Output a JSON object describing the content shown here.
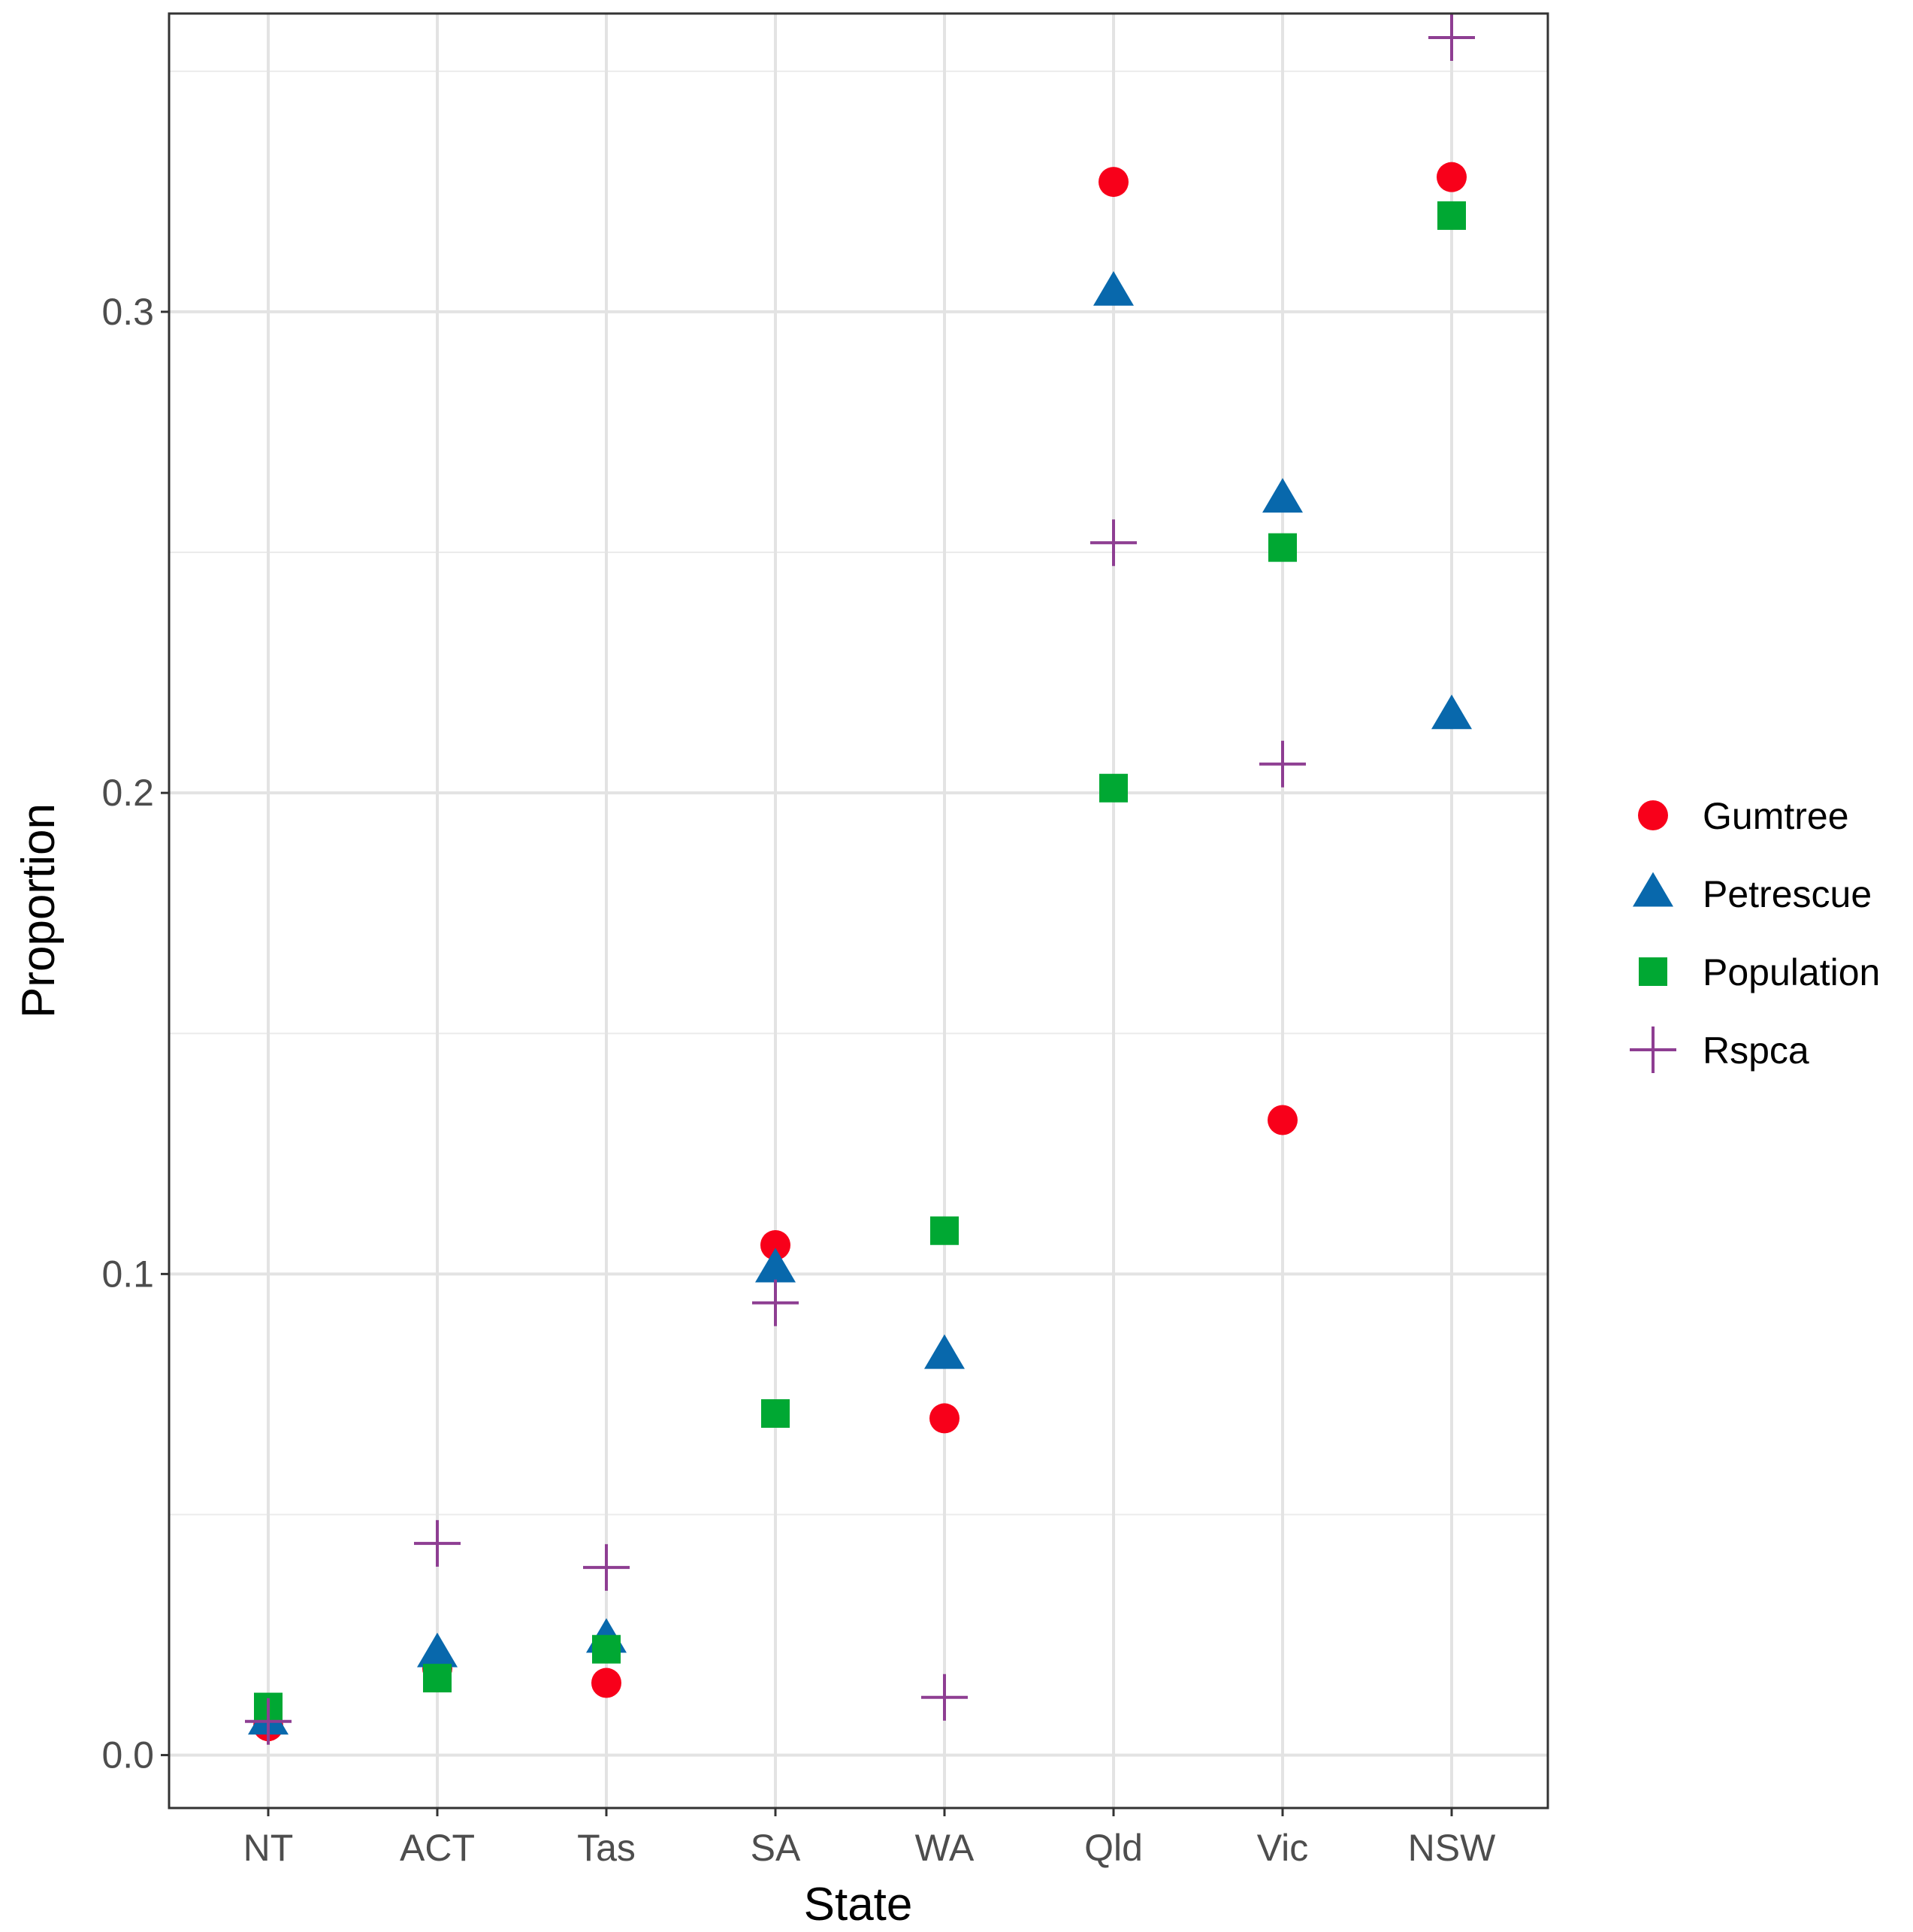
{
  "chart_data": {
    "type": "scatter",
    "xlabel": "State",
    "ylabel": "Proportion",
    "categories": [
      "NT",
      "ACT",
      "Tas",
      "SA",
      "WA",
      "Qld",
      "Vic",
      "NSW"
    ],
    "ylim": [
      -0.011,
      0.362
    ],
    "yticks": [
      0.0,
      0.1,
      0.2,
      0.3
    ],
    "ytick_labels": [
      "0.0",
      "0.1",
      "0.2",
      "0.3"
    ],
    "grid": true,
    "legend_position": "right",
    "series": [
      {
        "name": "Gumtree",
        "marker": "circle",
        "color": "#f8001a",
        "values": [
          0.006,
          0.018,
          0.015,
          0.106,
          0.07,
          0.327,
          0.132,
          0.328
        ]
      },
      {
        "name": "Petrescue",
        "marker": "triangle",
        "color": "#0868ac",
        "values": [
          0.007,
          0.021,
          0.024,
          0.101,
          0.083,
          0.304,
          0.261,
          0.216
        ]
      },
      {
        "name": "Population",
        "marker": "square",
        "color": "#00a833",
        "values": [
          0.01,
          0.016,
          0.022,
          0.071,
          0.109,
          0.201,
          0.251,
          0.32
        ]
      },
      {
        "name": "Rspca",
        "marker": "plus",
        "color": "#8e3e92",
        "values": [
          0.007,
          0.044,
          0.039,
          0.094,
          0.012,
          0.252,
          0.206,
          0.357
        ]
      }
    ]
  }
}
